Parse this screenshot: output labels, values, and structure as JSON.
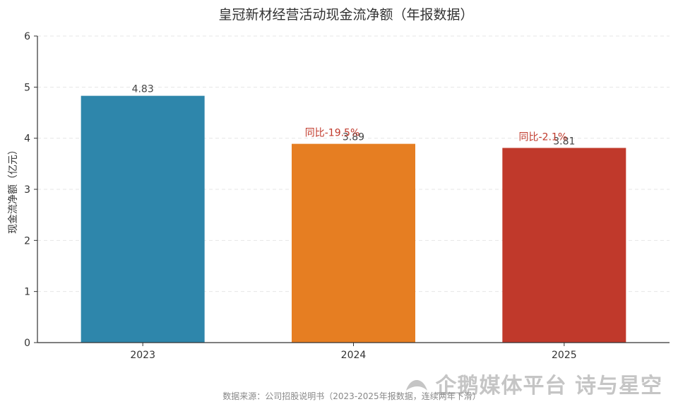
{
  "chart_data": {
    "type": "bar",
    "title": "皇冠新材经营活动现金流净额（年报数据）",
    "ylabel": "现金流净额（亿元）",
    "xlabel": "",
    "categories": [
      "2023",
      "2024",
      "2025"
    ],
    "values": [
      4.83,
      3.89,
      3.81
    ],
    "value_labels": [
      "4.83",
      "3.89",
      "3.81"
    ],
    "bar_colors": [
      "#2e86ab",
      "#e67e22",
      "#c0392b"
    ],
    "ylim": [
      0,
      6
    ],
    "yticks": [
      "0",
      "1",
      "2",
      "3",
      "4",
      "5",
      "6"
    ],
    "grid": true,
    "annotations": [
      {
        "category": "2024",
        "text": "同比-19.5%",
        "color": "#c0392b"
      },
      {
        "category": "2025",
        "text": "同比-2.1%",
        "color": "#c0392b"
      }
    ],
    "source_note": "数据来源：公司招股说明书（2023-2025年报数据，连续两年下滑）"
  },
  "watermark": {
    "text": "企鹅媒体平台 诗与星空",
    "icon": "penguin-logo-icon"
  }
}
